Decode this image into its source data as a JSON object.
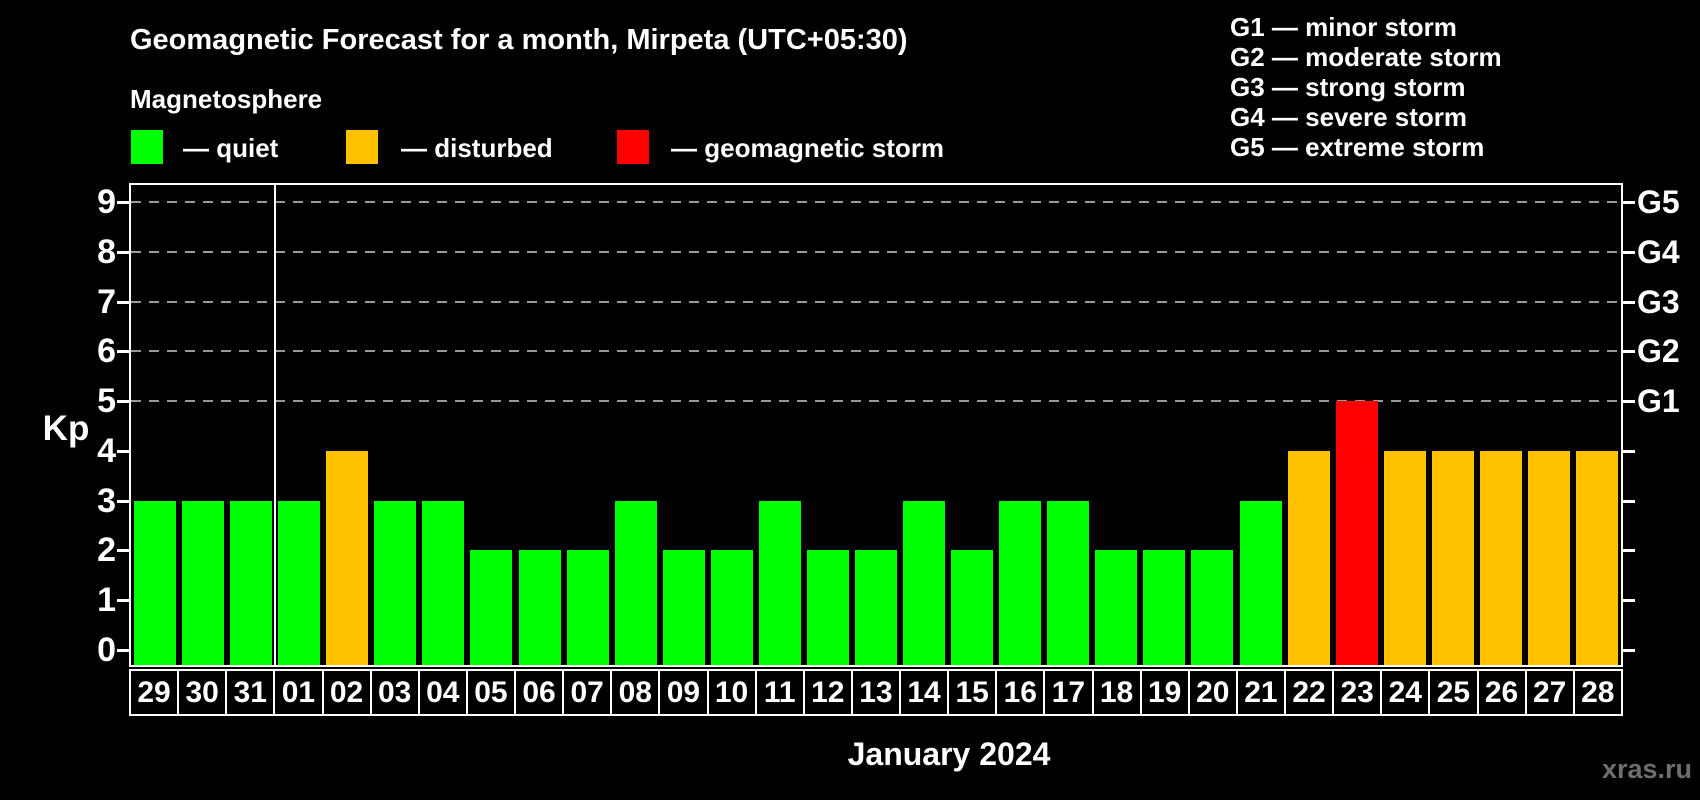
{
  "title": "Geomagnetic Forecast for a month, Mirpeta (UTC+05:30)",
  "subtitle": "Magnetosphere",
  "legend": {
    "quiet": "— quiet",
    "disturbed": "— disturbed",
    "storm": "— geomagnetic storm"
  },
  "g_legend_lines": [
    "G1 — minor storm",
    "G2 — moderate storm",
    "G3 — strong storm",
    "G4 — severe storm",
    "G5 — extreme storm"
  ],
  "colors": {
    "quiet": "#00ff00",
    "disturbed": "#ffc000",
    "storm": "#ff0000",
    "background": "#000000",
    "grid": "#999999",
    "axis": "#ffffff",
    "watermark": "#6e6e6e"
  },
  "axes": {
    "y_label": "Kp",
    "y_ticks": [
      0,
      1,
      2,
      3,
      4,
      5,
      6,
      7,
      8,
      9
    ],
    "right_labels": [
      {
        "label": "G1",
        "kp": 5
      },
      {
        "label": "G2",
        "kp": 6
      },
      {
        "label": "G3",
        "kp": 7
      },
      {
        "label": "G4",
        "kp": 8
      },
      {
        "label": "G5",
        "kp": 9
      }
    ],
    "x_label": "January 2024"
  },
  "watermark": "xras.ru",
  "chart_data": {
    "type": "bar",
    "title": "Geomagnetic Forecast for a month, Mirpeta (UTC+05:30)",
    "xlabel": "January 2024",
    "ylabel": "Kp",
    "ylim": [
      0,
      9
    ],
    "gridlines_at": [
      5,
      6,
      7,
      8,
      9
    ],
    "legend_position": "top",
    "grid": "dashed horizontal at storm levels only",
    "month_separator_after_index": 2,
    "categories": [
      "29",
      "30",
      "31",
      "01",
      "02",
      "03",
      "04",
      "05",
      "06",
      "07",
      "08",
      "09",
      "10",
      "11",
      "12",
      "13",
      "14",
      "15",
      "16",
      "17",
      "18",
      "19",
      "20",
      "21",
      "22",
      "23",
      "24",
      "25",
      "26",
      "27",
      "28"
    ],
    "values": [
      3,
      3,
      3,
      3,
      4,
      3,
      3,
      2,
      2,
      2,
      3,
      2,
      2,
      3,
      2,
      2,
      3,
      2,
      3,
      3,
      2,
      2,
      2,
      3,
      4,
      5,
      4,
      4,
      4,
      4,
      4
    ],
    "statuses": [
      "quiet",
      "quiet",
      "quiet",
      "quiet",
      "disturbed",
      "quiet",
      "quiet",
      "quiet",
      "quiet",
      "quiet",
      "quiet",
      "quiet",
      "quiet",
      "quiet",
      "quiet",
      "quiet",
      "quiet",
      "quiet",
      "quiet",
      "quiet",
      "quiet",
      "quiet",
      "quiet",
      "quiet",
      "disturbed",
      "storm",
      "disturbed",
      "disturbed",
      "disturbed",
      "disturbed",
      "disturbed"
    ]
  }
}
